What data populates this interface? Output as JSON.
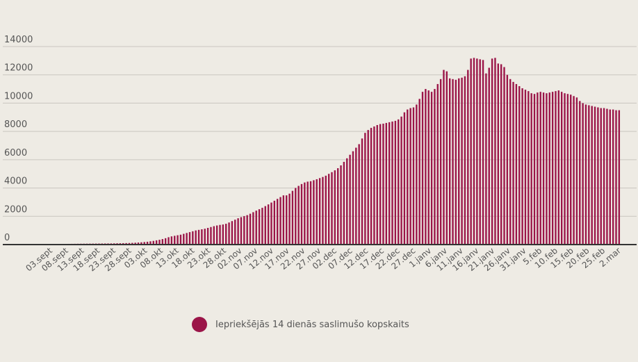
{
  "colors": {
    "background": "#eeebe4",
    "series": "#9b1548",
    "grid": "#c9c6bf",
    "axis": "#333333",
    "text": "#555555"
  },
  "legend": {
    "label": "Iepriekšējās 14 dienās saslimušo kopskaits",
    "position": "bottom-center"
  },
  "chart_data": {
    "type": "bar",
    "title": "",
    "xlabel": "",
    "ylabel": "",
    "ylim": [
      0,
      14000
    ],
    "y_ticks": [
      0,
      2000,
      4000,
      6000,
      8000,
      10000,
      12000,
      14000
    ],
    "grid": true,
    "x_tick_labels": [
      "03.sept",
      "08.sept",
      "13.sept",
      "18.sept",
      "23.sept",
      "28.sept",
      "03.okt",
      "08.okt",
      "13.okt",
      "18.okt",
      "23.okt",
      "28.okt",
      "02.nov",
      "07.nov",
      "12.nov",
      "17.nov",
      "22.nov",
      "27.nov",
      "02.dec",
      "07.dec",
      "12.dec",
      "17.dec",
      "22.dec",
      "27.dec",
      "1.janv",
      "6.janv",
      "11.janv",
      "16.janv",
      "21.janv",
      "26.janv",
      "31.janv",
      "5.feb",
      "10.feb",
      "15.feb",
      "20.feb",
      "25.feb",
      "2.mar"
    ],
    "series": [
      {
        "name": "Iepriekšējās 14 dienās saslimušo kopskaits",
        "values": [
          40,
          42,
          44,
          46,
          48,
          50,
          52,
          55,
          58,
          60,
          62,
          64,
          66,
          68,
          70,
          72,
          74,
          76,
          78,
          80,
          85,
          90,
          95,
          100,
          105,
          110,
          120,
          130,
          145,
          160,
          180,
          200,
          230,
          260,
          300,
          340,
          390,
          450,
          520,
          580,
          620,
          660,
          700,
          760,
          820,
          880,
          940,
          1000,
          1040,
          1080,
          1120,
          1180,
          1240,
          1300,
          1350,
          1390,
          1420,
          1470,
          1560,
          1660,
          1760,
          1860,
          1940,
          2010,
          2080,
          2180,
          2290,
          2400,
          2500,
          2600,
          2720,
          2840,
          2970,
          3100,
          3230,
          3360,
          3480,
          3480,
          3600,
          3800,
          4000,
          4150,
          4280,
          4390,
          4450,
          4480,
          4550,
          4620,
          4700,
          4780,
          4870,
          5000,
          5120,
          5250,
          5400,
          5600,
          5850,
          6100,
          6350,
          6600,
          6850,
          7100,
          7500,
          7900,
          8100,
          8250,
          8350,
          8450,
          8520,
          8550,
          8600,
          8650,
          8700,
          8750,
          8850,
          9050,
          9350,
          9550,
          9650,
          9700,
          9900,
          10300,
          10800,
          11000,
          10900,
          10800,
          11000,
          11350,
          11700,
          12350,
          12250,
          11750,
          11700,
          11650,
          11750,
          11800,
          11900,
          12350,
          13150,
          13200,
          13150,
          13100,
          13050,
          12100,
          12500,
          13150,
          13200,
          12800,
          12750,
          12550,
          12000,
          11700,
          11500,
          11350,
          11200,
          11050,
          10950,
          10850,
          10700,
          10650,
          10750,
          10800,
          10750,
          10700,
          10750,
          10800,
          10850,
          10900,
          10800,
          10700,
          10650,
          10600,
          10500,
          10400,
          10150,
          10000,
          9900,
          9850,
          9800,
          9750,
          9700,
          9650,
          9650,
          9600,
          9550,
          9550,
          9500,
          9500
        ]
      }
    ]
  }
}
